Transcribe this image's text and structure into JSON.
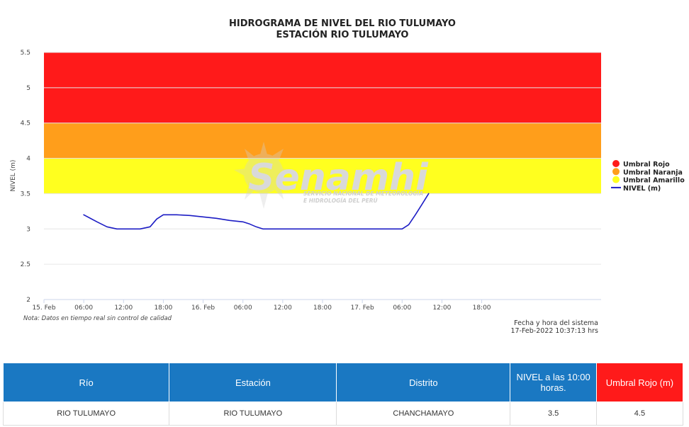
{
  "chart_data": {
    "type": "line",
    "title": "HIDROGRAMA DE NIVEL DEL RIO TULUMAYO",
    "subtitle": "ESTACIÓN RIO TULUMAYO",
    "ylabel": "NIVEL (m)",
    "xlabel": "",
    "ylim": [
      2,
      5.5
    ],
    "yticks": [
      "2",
      "2.5",
      "3",
      "3.5",
      "4",
      "4.5",
      "5",
      "5.5"
    ],
    "xlim": [
      0,
      84
    ],
    "x_tick_hours": [
      0,
      6,
      12,
      18,
      24,
      30,
      36,
      42,
      48,
      54,
      60,
      66
    ],
    "xticks": [
      "15. Feb",
      "06:00",
      "12:00",
      "18:00",
      "16. Feb",
      "06:00",
      "12:00",
      "18:00",
      "17. Feb",
      "06:00",
      "12:00",
      "18:00"
    ],
    "grid": true,
    "legend_position": "right",
    "bands": [
      {
        "name": "Umbral Rojo",
        "from": 4.5,
        "to": 5.5,
        "color": "#ff1a1a"
      },
      {
        "name": "Umbral Naranja",
        "from": 4.0,
        "to": 4.5,
        "color": "#ff9e1b"
      },
      {
        "name": "Umbral Amarillo",
        "from": 3.5,
        "to": 4.0,
        "color": "#ffff1f"
      }
    ],
    "series": [
      {
        "name": "NIVEL (m)",
        "color": "#1c1cc4",
        "x": [
          6,
          8,
          9.5,
          11,
          12,
          13,
          14.5,
          16,
          17,
          18,
          20,
          22,
          24,
          26,
          28,
          30,
          31,
          32,
          33,
          34,
          36,
          40,
          44,
          48,
          52,
          54,
          55,
          56,
          57,
          58
        ],
        "y": [
          3.2,
          3.1,
          3.03,
          3.0,
          3.0,
          3.0,
          3.0,
          3.03,
          3.14,
          3.2,
          3.2,
          3.19,
          3.17,
          3.15,
          3.12,
          3.1,
          3.07,
          3.03,
          3.0,
          3.0,
          3.0,
          3.0,
          3.0,
          3.0,
          3.0,
          3.0,
          3.06,
          3.2,
          3.35,
          3.5
        ]
      }
    ],
    "note": "Nota: Datos en tiempo real sin control de calidad",
    "system_label": "Fecha y hora del sistema",
    "system_time": "17-Feb-2022 10:37:13 hrs"
  },
  "watermark": {
    "name": "Senamhi",
    "line1": "SERVICIO NACIONAL DE METEOROLOGÍA",
    "line2": "E HIDROLOGÍA DEL PERÚ"
  },
  "table": {
    "headers": [
      "Río",
      "Estación",
      "Distrito",
      "NIVEL a las 10:00 horas.",
      "Umbral Rojo (m)"
    ],
    "row": [
      "RIO TULUMAYO",
      "RIO TULUMAYO",
      "CHANCHAMAYO",
      "3.5",
      "4.5"
    ]
  }
}
